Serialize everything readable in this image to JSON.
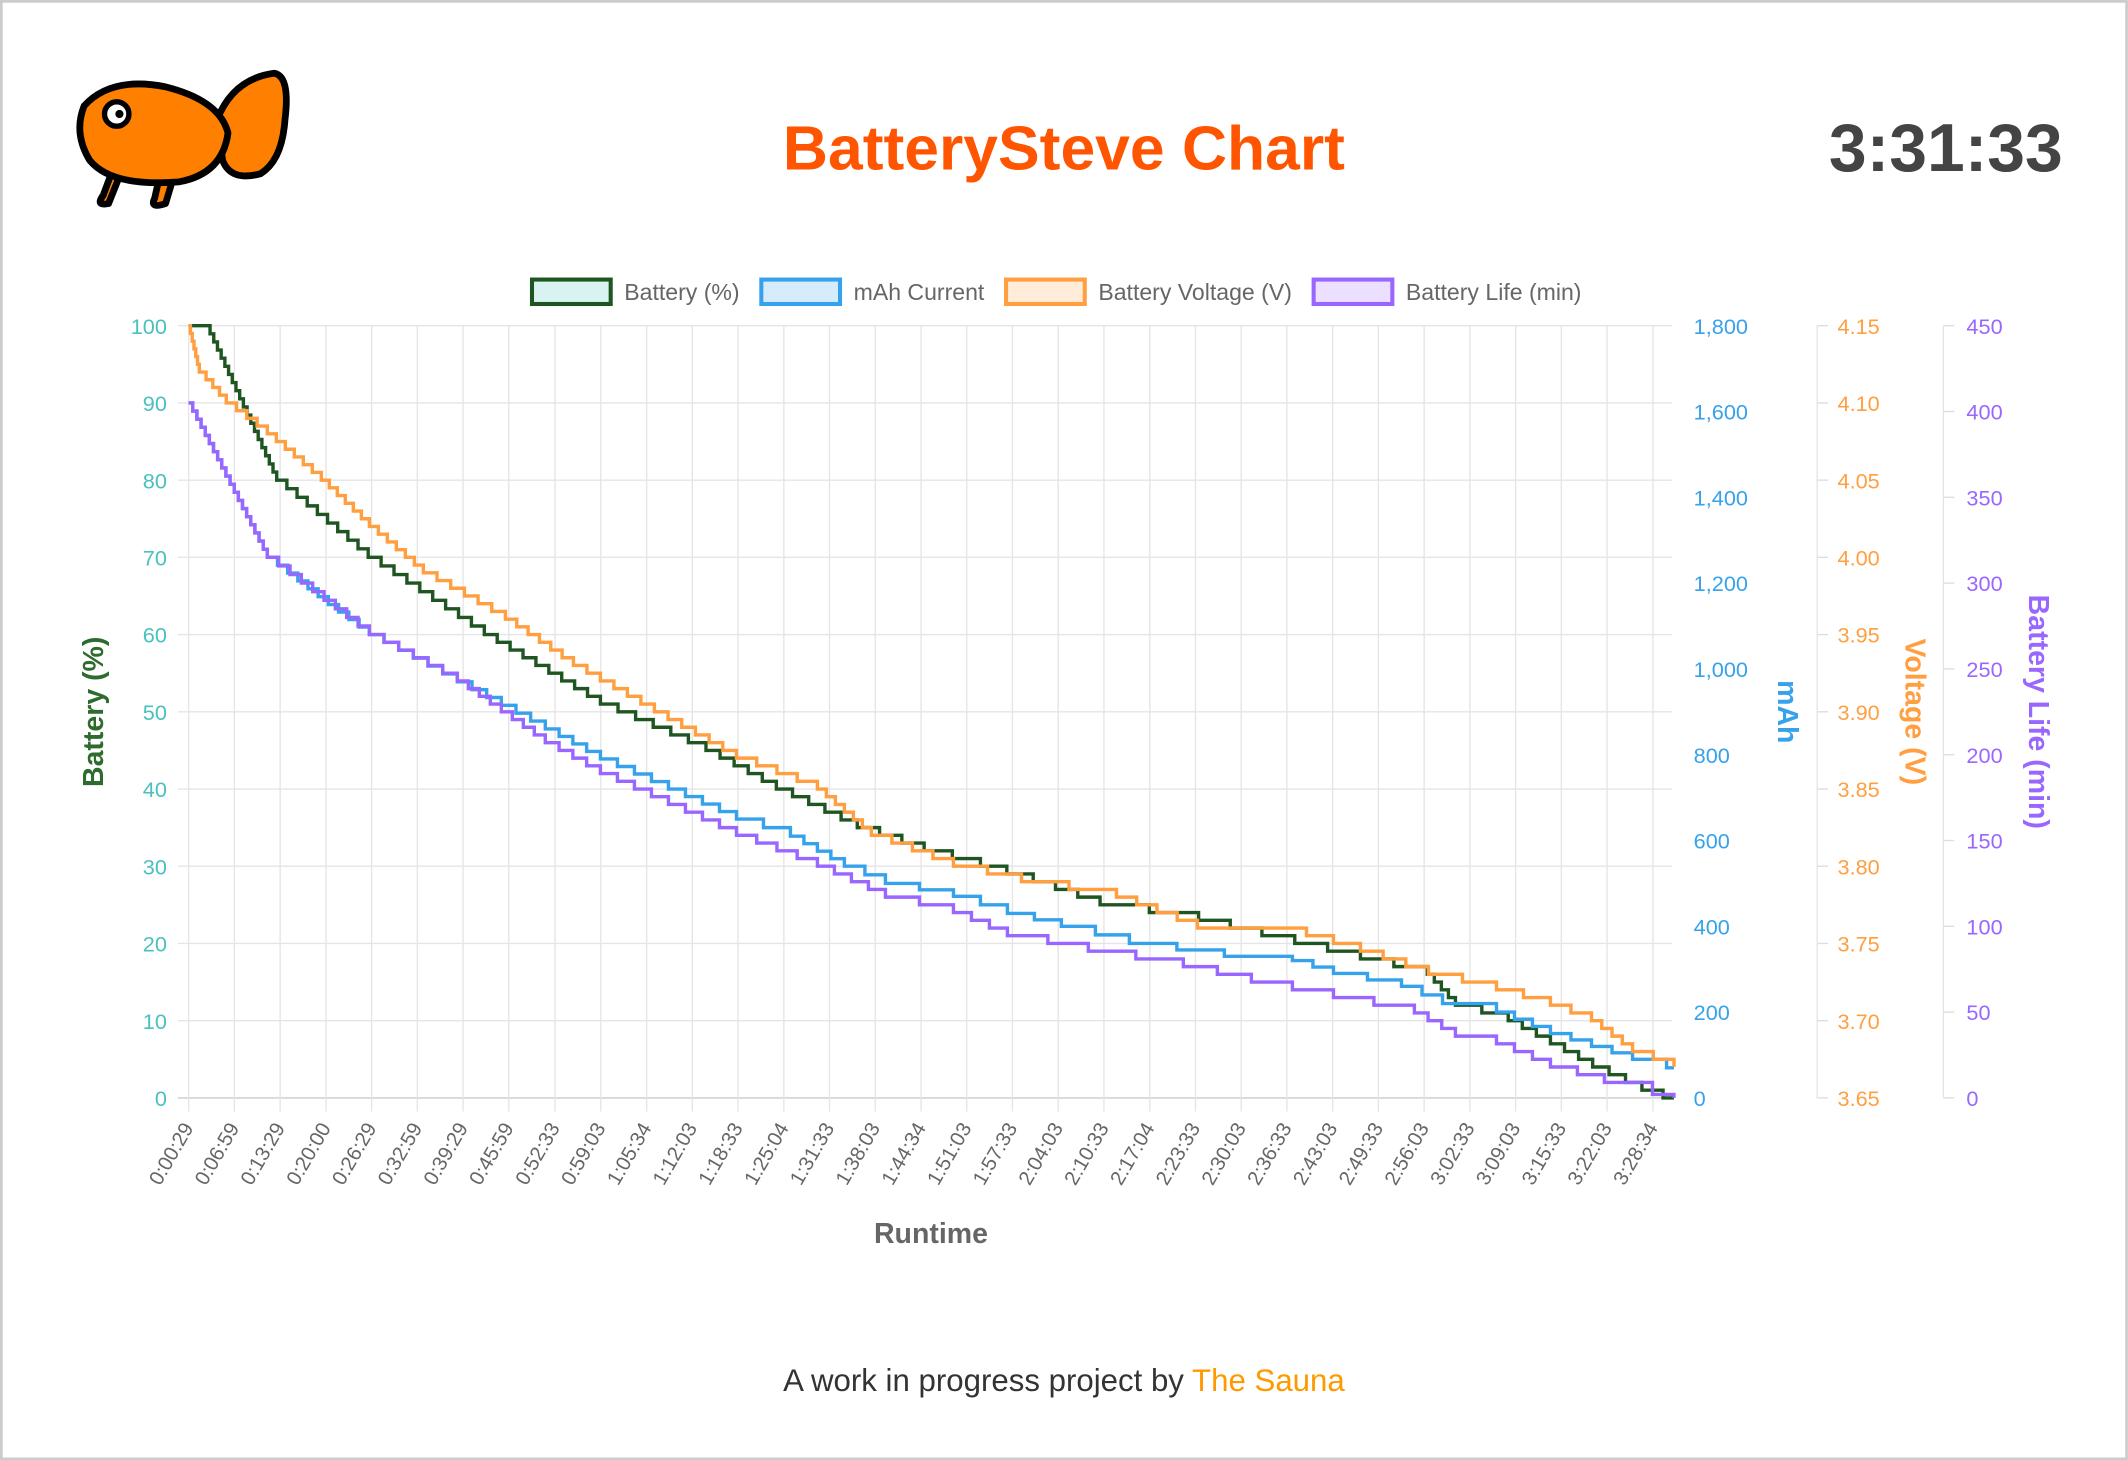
{
  "header": {
    "title": "BatterySteve Chart",
    "clock": "3:31:33",
    "logo": "goldfish-logo"
  },
  "footer": {
    "text": "A work in progress project by ",
    "link": "The Sauna"
  },
  "chart_data": {
    "type": "line",
    "xlabel": "Runtime",
    "x_ticks": [
      "0:00:29",
      "0:06:59",
      "0:13:29",
      "0:20:00",
      "0:26:29",
      "0:32:59",
      "0:39:29",
      "0:45:59",
      "0:52:33",
      "0:59:03",
      "1:05:34",
      "1:12:03",
      "1:18:33",
      "1:25:04",
      "1:31:33",
      "1:38:03",
      "1:44:34",
      "1:51:03",
      "1:57:33",
      "2:04:03",
      "2:10:33",
      "2:17:04",
      "2:23:33",
      "2:30:03",
      "2:36:33",
      "2:43:03",
      "2:49:33",
      "2:56:03",
      "3:02:33",
      "3:09:03",
      "3:15:33",
      "3:22:03",
      "3:28:34"
    ],
    "x_end": "3:31:33",
    "grid": true,
    "legend_position": "top",
    "axes": [
      {
        "id": "battery",
        "label": "Battery (%)",
        "range": [
          0,
          100
        ],
        "ticks": [
          "0",
          "10",
          "20",
          "30",
          "40",
          "50",
          "60",
          "70",
          "80",
          "90",
          "100"
        ],
        "side": "left",
        "tick_color": "#4bc0c0",
        "label_color": "#2e6b2e"
      },
      {
        "id": "mah",
        "label": "mAh",
        "range": [
          0,
          1800
        ],
        "ticks": [
          "0",
          "200",
          "400",
          "600",
          "800",
          "1,000",
          "1,200",
          "1,400",
          "1,600",
          "1,800"
        ],
        "side": "right",
        "color": "#36a2eb"
      },
      {
        "id": "voltage",
        "label": "Voltage (V)",
        "range": [
          3.65,
          4.15
        ],
        "ticks": [
          "3.65",
          "3.70",
          "3.75",
          "3.80",
          "3.85",
          "3.90",
          "3.95",
          "4.00",
          "4.05",
          "4.10",
          "4.15"
        ],
        "side": "right",
        "color": "#ff9f40"
      },
      {
        "id": "life",
        "label": "Battery Life (min)",
        "range": [
          0,
          450
        ],
        "ticks": [
          "0",
          "50",
          "100",
          "150",
          "200",
          "250",
          "300",
          "350",
          "400",
          "450"
        ],
        "side": "right",
        "color": "#9966ff"
      }
    ],
    "series": [
      {
        "name": "Battery (%)",
        "axis": "battery",
        "color": "#1e5520",
        "fill": "#d9f2f2",
        "points": [
          [
            "0:00:29",
            100
          ],
          [
            "0:03:00",
            100
          ],
          [
            "0:13:00",
            80
          ],
          [
            "0:26:00",
            70
          ],
          [
            "0:42:30",
            60
          ],
          [
            "0:59:00",
            51
          ],
          [
            "1:14:00",
            45
          ],
          [
            "1:24:00",
            40
          ],
          [
            "1:35:30",
            35
          ],
          [
            "1:45:00",
            32
          ],
          [
            "1:53:00",
            30
          ],
          [
            "2:00:30",
            28
          ],
          [
            "2:10:00",
            25
          ],
          [
            "2:24:00",
            23
          ],
          [
            "2:33:00",
            21
          ],
          [
            "2:47:00",
            18
          ],
          [
            "2:56:30",
            16
          ],
          [
            "3:00:30",
            12
          ],
          [
            "3:08:00",
            10
          ],
          [
            "3:16:00",
            6
          ],
          [
            "3:20:00",
            4
          ],
          [
            "3:27:00",
            1
          ],
          [
            "3:30:00",
            0
          ],
          [
            "3:31:33",
            0
          ]
        ]
      },
      {
        "name": "mAh Current",
        "axis": "mah",
        "color": "#36a2eb",
        "fill": "#d7ecfb",
        "points": [
          [
            "0:00:29",
            1620
          ],
          [
            "0:11:40",
            1260
          ],
          [
            "0:20:20",
            1150
          ],
          [
            "0:26:10",
            1080
          ],
          [
            "0:38:40",
            970
          ],
          [
            "0:51:10",
            860
          ],
          [
            "0:59:00",
            790
          ],
          [
            "1:08:40",
            720
          ],
          [
            "1:18:20",
            650
          ],
          [
            "1:26:00",
            610
          ],
          [
            "1:33:40",
            540
          ],
          [
            "1:39:30",
            500
          ],
          [
            "1:49:10",
            470
          ],
          [
            "1:56:50",
            430
          ],
          [
            "2:04:30",
            400
          ],
          [
            "2:14:10",
            360
          ],
          [
            "2:27:40",
            330
          ],
          [
            "2:37:20",
            320
          ],
          [
            "2:43:10",
            290
          ],
          [
            "2:52:50",
            260
          ],
          [
            "2:58:40",
            220
          ],
          [
            "3:06:20",
            200
          ],
          [
            "3:14:00",
            150
          ],
          [
            "3:19:50",
            120
          ],
          [
            "3:25:40",
            90
          ],
          [
            "3:30:30",
            70
          ],
          [
            "3:31:33",
            70
          ]
        ]
      },
      {
        "name": "Battery Voltage (V)",
        "axis": "voltage",
        "color": "#ff9f40",
        "fill": "#ffecd9",
        "points": [
          [
            "0:00:29",
            4.15
          ],
          [
            "0:02:00",
            4.12
          ],
          [
            "0:05:50",
            4.1
          ],
          [
            "0:11:40",
            4.08
          ],
          [
            "0:19:20",
            4.05
          ],
          [
            "0:26:10",
            4.02
          ],
          [
            "0:33:50",
            3.99
          ],
          [
            "0:45:30",
            3.96
          ],
          [
            "0:55:10",
            3.93
          ],
          [
            "1:06:40",
            3.9
          ],
          [
            "1:18:20",
            3.87
          ],
          [
            "1:29:50",
            3.85
          ],
          [
            "1:37:30",
            3.82
          ],
          [
            "1:49:10",
            3.8
          ],
          [
            "1:58:50",
            3.79
          ],
          [
            "2:12:20",
            3.78
          ],
          [
            "2:23:50",
            3.76
          ],
          [
            "2:39:20",
            3.755
          ],
          [
            "2:47:00",
            3.745
          ],
          [
            "2:56:40",
            3.73
          ],
          [
            "3:06:20",
            3.72
          ],
          [
            "3:14:00",
            3.71
          ],
          [
            "3:19:50",
            3.7
          ],
          [
            "3:25:40",
            3.68
          ],
          [
            "3:31:33",
            3.67
          ]
        ]
      },
      {
        "name": "Battery Life (min)",
        "axis": "life",
        "color": "#9966ff",
        "fill": "#ebe0ff",
        "points": [
          [
            "0:00:29",
            405
          ],
          [
            "0:11:40",
            315
          ],
          [
            "0:26:10",
            270
          ],
          [
            "0:38:40",
            243
          ],
          [
            "0:51:10",
            207
          ],
          [
            "0:59:00",
            189
          ],
          [
            "1:08:40",
            171
          ],
          [
            "1:18:20",
            153
          ],
          [
            "1:29:50",
            135
          ],
          [
            "1:39:30",
            117
          ],
          [
            "1:49:10",
            108
          ],
          [
            "1:56:50",
            94.5
          ],
          [
            "2:08:20",
            85.5
          ],
          [
            "2:21:50",
            76.5
          ],
          [
            "2:31:30",
            67.5
          ],
          [
            "2:43:10",
            58.5
          ],
          [
            "2:54:40",
            49.5
          ],
          [
            "3:00:30",
            36
          ],
          [
            "3:06:20",
            31.5
          ],
          [
            "3:14:00",
            18
          ],
          [
            "3:21:40",
            9
          ],
          [
            "3:28:30",
            2
          ],
          [
            "3:31:33",
            0
          ]
        ]
      }
    ]
  }
}
